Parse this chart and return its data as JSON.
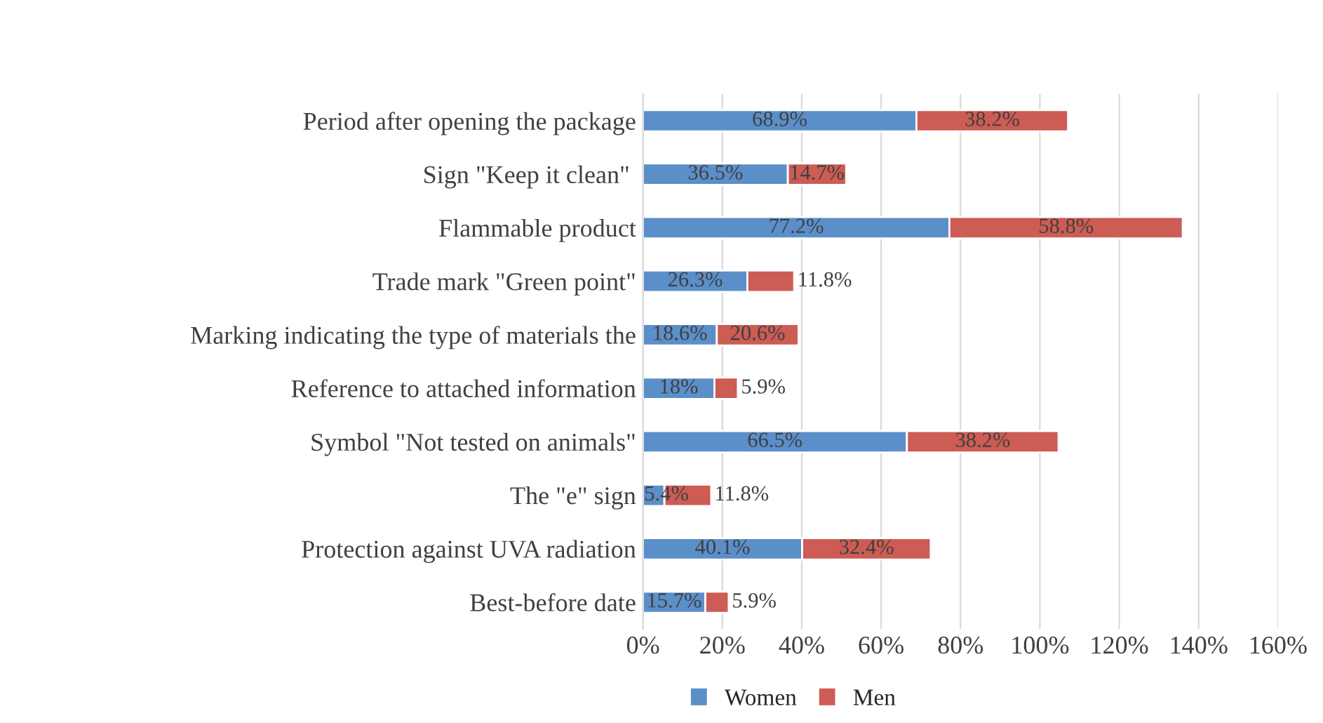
{
  "chart_data": {
    "type": "bar",
    "orientation": "horizontal",
    "stacked": true,
    "categories": [
      "Period after opening the package",
      "Sign \"Keep it clean\" ",
      "Flammable product",
      "Trade mark \"Green point\"",
      "Marking indicating the type of materials the",
      "Reference to attached information",
      "Symbol \"Not tested on animals\"",
      "The \"e\" sign",
      "Protection against UVA radiation",
      "Best-before date"
    ],
    "series": [
      {
        "name": "Women",
        "color": "#5b8fc9",
        "values": [
          68.9,
          36.5,
          77.2,
          26.3,
          18.6,
          18,
          66.5,
          5.4,
          40.1,
          15.7
        ],
        "value_labels": [
          "68.9%",
          "36.5%",
          "77.2%",
          "26.3%",
          "18.6%",
          "18%",
          "66.5%",
          "5.4%",
          "40.1%",
          "15.7%"
        ]
      },
      {
        "name": "Men",
        "color": "#cd5c55",
        "values": [
          38.2,
          14.7,
          58.8,
          11.8,
          20.6,
          5.9,
          38.2,
          11.8,
          32.4,
          5.9
        ],
        "value_labels": [
          "38.2%",
          "14.7%",
          "58.8%",
          "11.8%",
          "20.6%",
          "5.9%",
          "38.2%",
          "11.8%",
          "32.4%",
          "5.9%"
        ]
      }
    ],
    "xlim": [
      0,
      160
    ],
    "xticks": [
      {
        "value": 0,
        "label": "0%"
      },
      {
        "value": 20,
        "label": "20%"
      },
      {
        "value": 40,
        "label": "40%"
      },
      {
        "value": 60,
        "label": "60%"
      },
      {
        "value": 80,
        "label": "80%"
      },
      {
        "value": 100,
        "label": "100%"
      },
      {
        "value": 120,
        "label": "120%"
      },
      {
        "value": 140,
        "label": "140%"
      },
      {
        "value": 160,
        "label": "160%"
      }
    ],
    "grid": "x",
    "legend": "bottom"
  }
}
